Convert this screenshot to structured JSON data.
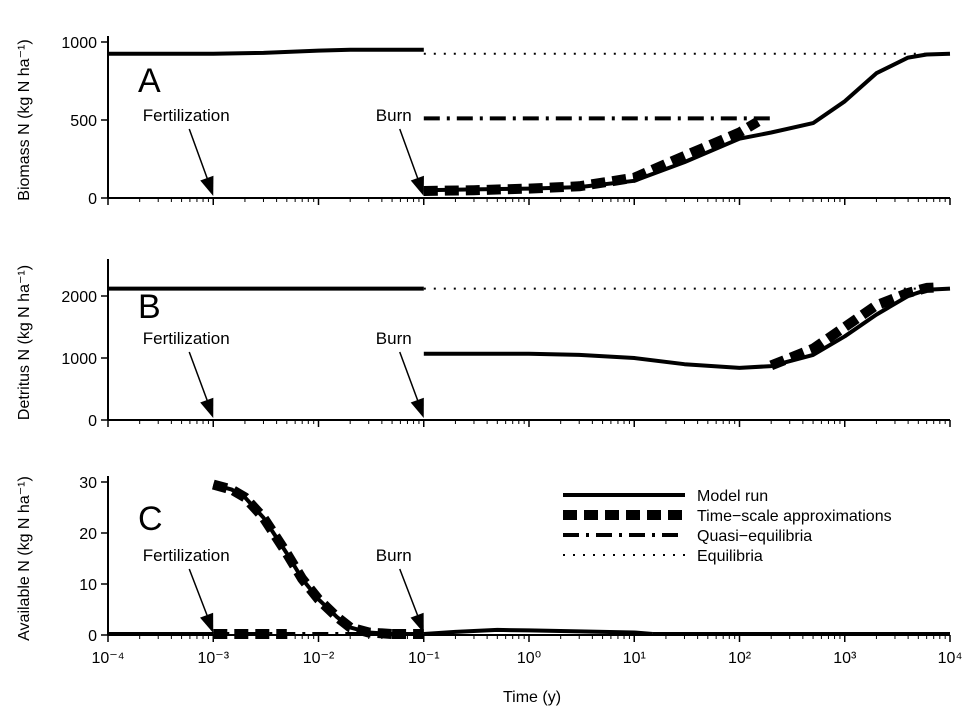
{
  "chart_data": [
    {
      "type": "line",
      "panel_label": "A",
      "ylabel": "Biomass N (kg N ha⁻¹)",
      "xscale": "log",
      "xlim": [
        0.0001,
        10000
      ],
      "ylim": [
        0,
        1000
      ],
      "yticks": [
        0,
        500,
        1000
      ],
      "annotations": [
        {
          "text": "Fertilization",
          "x": 0.001
        },
        {
          "text": "Burn",
          "x": 0.1
        }
      ],
      "series": [
        {
          "role": "model",
          "segments": [
            {
              "x": [
                0.0001,
                0.001,
                0.003,
                0.01,
                0.02,
                0.1
              ],
              "y": [
                925,
                925,
                930,
                945,
                950,
                950
              ]
            },
            {
              "x": [
                0.1,
                0.3,
                1,
                3,
                10,
                30,
                100,
                200,
                500,
                1000,
                2000,
                4000,
                6000,
                10000
              ],
              "y": [
                50,
                55,
                60,
                70,
                110,
                230,
                380,
                420,
                480,
                620,
                800,
                900,
                920,
                925
              ]
            }
          ]
        },
        {
          "role": "timescale",
          "segments": [
            {
              "x": [
                0.1,
                0.3,
                1,
                3,
                10,
                30,
                100,
                150
              ],
              "y": [
                45,
                50,
                60,
                75,
                130,
                270,
                420,
                490
              ]
            }
          ]
        },
        {
          "role": "quasi",
          "segments": [
            {
              "x": [
                0.1,
                200
              ],
              "y": [
                510,
                510
              ]
            }
          ]
        },
        {
          "role": "equil",
          "segments": [
            {
              "x": [
                0.1,
                10000
              ],
              "y": [
                925,
                925
              ]
            }
          ]
        }
      ]
    },
    {
      "type": "line",
      "panel_label": "B",
      "ylabel": "Detritus N (kg N ha⁻¹)",
      "xscale": "log",
      "xlim": [
        0.0001,
        10000
      ],
      "ylim": [
        0,
        2500
      ],
      "yticks": [
        0,
        1000,
        2000
      ],
      "annotations": [
        {
          "text": "Fertilization",
          "x": 0.001
        },
        {
          "text": "Burn",
          "x": 0.1
        }
      ],
      "series": [
        {
          "role": "model",
          "segments": [
            {
              "x": [
                0.0001,
                0.1
              ],
              "y": [
                2120,
                2120
              ]
            },
            {
              "x": [
                0.1,
                1,
                3,
                10,
                30,
                100,
                200,
                500,
                1000,
                2000,
                4000,
                6000,
                10000
              ],
              "y": [
                1070,
                1070,
                1050,
                1000,
                900,
                840,
                870,
                1050,
                1350,
                1700,
                2000,
                2100,
                2120
              ]
            }
          ]
        },
        {
          "role": "timescale",
          "segments": [
            {
              "x": [
                200,
                500,
                1000,
                2000,
                4000,
                6000,
                8000
              ],
              "y": [
                880,
                1150,
                1500,
                1850,
                2050,
                2130,
                2140
              ]
            }
          ]
        },
        {
          "role": "equil",
          "segments": [
            {
              "x": [
                0.1,
                10000
              ],
              "y": [
                2120,
                2120
              ]
            }
          ]
        }
      ]
    },
    {
      "type": "line",
      "panel_label": "C",
      "ylabel": "Available N (kg N ha⁻¹)",
      "xlabel": "Time (y)",
      "xscale": "log",
      "xlim": [
        0.0001,
        10000
      ],
      "ylim": [
        0,
        30
      ],
      "yticks": [
        0,
        10,
        20,
        30
      ],
      "xticks": [
        "10⁻⁴",
        "10⁻³",
        "10⁻²",
        "10⁻¹",
        "10⁰",
        "10¹",
        "10²",
        "10³",
        "10⁴"
      ],
      "annotations": [
        {
          "text": "Fertilization",
          "x": 0.001
        },
        {
          "text": "Burn",
          "x": 0.1
        }
      ],
      "legend": {
        "placement": "right",
        "entries": [
          {
            "role": "model",
            "label": "Model run"
          },
          {
            "role": "timescale",
            "label": "Time−scale approximations"
          },
          {
            "role": "quasi",
            "label": "Quasi−equilibria"
          },
          {
            "role": "equil",
            "label": "Equilibria"
          }
        ]
      },
      "series": [
        {
          "role": "model",
          "segments": [
            {
              "x": [
                0.0001,
                0.001
              ],
              "y": [
                0.2,
                0.2
              ]
            },
            {
              "x": [
                0.001,
                0.0015,
                0.002,
                0.003,
                0.005,
                0.007,
                0.01,
                0.015,
                0.02,
                0.03,
                0.05,
                0.1
              ],
              "y": [
                29.5,
                28.5,
                27,
                23,
                16,
                11,
                7,
                3.5,
                1.5,
                0.5,
                0.2,
                0.2
              ]
            },
            {
              "x": [
                0.1,
                0.2,
                0.5,
                1,
                3,
                10,
                15
              ],
              "y": [
                0.2,
                0.6,
                1.0,
                0.9,
                0.7,
                0.5,
                0.2
              ]
            },
            {
              "x": [
                15,
                10000
              ],
              "y": [
                0.2,
                0.2
              ]
            }
          ]
        },
        {
          "role": "timescale",
          "segments": [
            {
              "x": [
                0.001,
                0.0015,
                0.002,
                0.003,
                0.005,
                0.007,
                0.01,
                0.015,
                0.02,
                0.03,
                0.05
              ],
              "y": [
                29.5,
                28.5,
                27,
                23,
                16,
                11,
                7,
                3.5,
                1.5,
                0.5,
                0.2
              ]
            },
            {
              "x": [
                0.001,
                0.005
              ],
              "y": [
                0.2,
                0.2
              ]
            },
            {
              "x": [
                0.05,
                0.1
              ],
              "y": [
                0.2,
                0.2
              ]
            }
          ]
        },
        {
          "role": "quasi",
          "segments": [
            {
              "x": [
                0.001,
                0.04
              ],
              "y": [
                0.2,
                0.2
              ]
            }
          ]
        }
      ]
    }
  ]
}
